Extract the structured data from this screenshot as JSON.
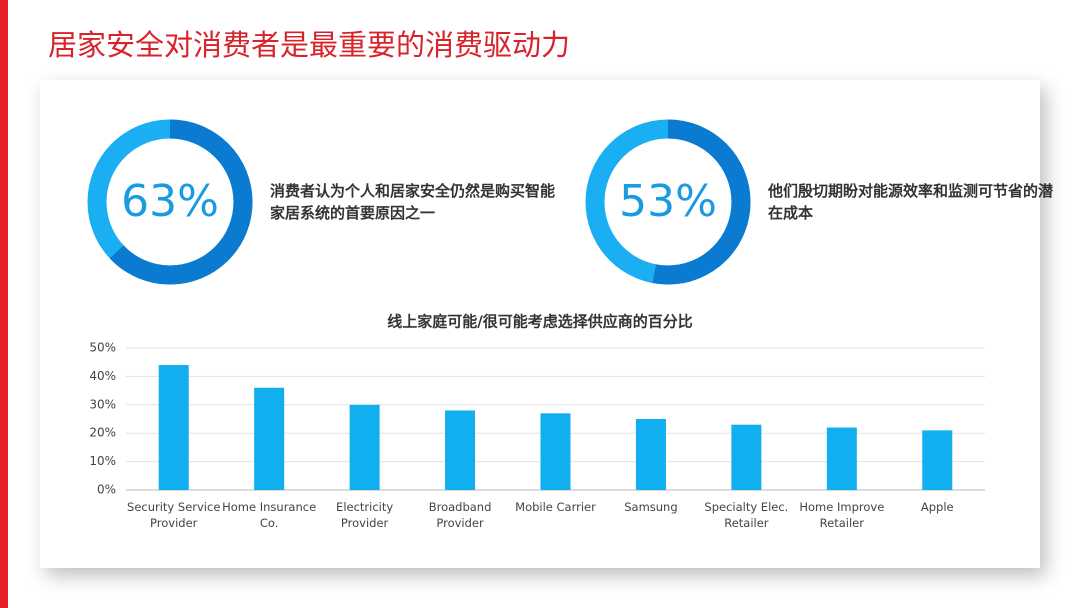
{
  "title": "居家安全对消费者是最重要的消费驱动力",
  "chart_data": [
    {
      "type": "donut",
      "values": [
        63
      ],
      "value_labels": [
        "63%"
      ],
      "color": "#0a7bd0",
      "track_color": "#1aaef2",
      "description": "消费者认为个人和居家安全仍然是购买智能家居系统的首要原因之一"
    },
    {
      "type": "donut",
      "values": [
        53
      ],
      "value_labels": [
        "53%"
      ],
      "color": "#0a7bd0",
      "track_color": "#1aaef2",
      "description": "他们殷切期盼对能源效率和监测可节省的潜在成本"
    },
    {
      "type": "bar",
      "title": "线上家庭可能/很可能考虑选择供应商的百分比",
      "categories": [
        "Security Service Provider",
        "Home Insurance Co.",
        "Electricity Provider",
        "Broadband Provider",
        "Mobile Carrier",
        "Samsung",
        "Specialty Elec. Retailer",
        "Home Improve Retailer",
        "Apple"
      ],
      "values": [
        44,
        36,
        30,
        28,
        27,
        25,
        23,
        22,
        21
      ],
      "color": "#11aef0",
      "ylim": [
        0,
        50
      ],
      "yticks": [
        {
          "value": 0,
          "label": "0%"
        },
        {
          "value": 10,
          "label": "10%"
        },
        {
          "value": 20,
          "label": "20%"
        },
        {
          "value": 30,
          "label": "30%"
        },
        {
          "value": 40,
          "label": "40%"
        },
        {
          "value": 50,
          "label": "50%"
        }
      ],
      "grid": true
    }
  ]
}
